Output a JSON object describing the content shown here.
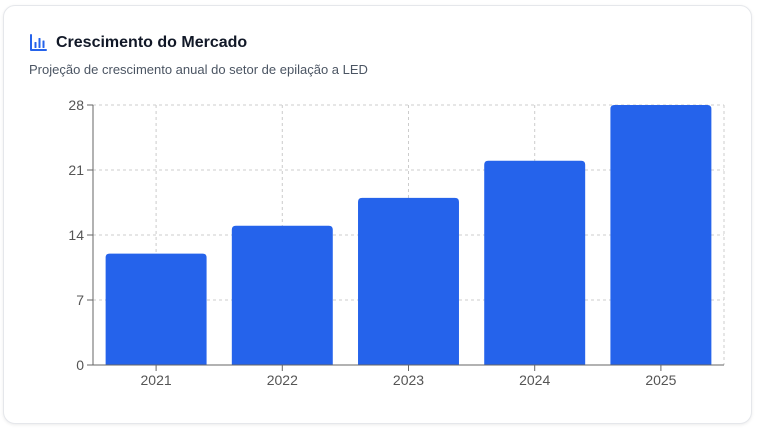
{
  "header": {
    "title": "Crescimento do Mercado",
    "subtitle": "Projeção de crescimento anual do setor de epilação a LED",
    "icon": "bar-chart-icon",
    "accent_color": "#2563eb"
  },
  "chart_data": {
    "type": "bar",
    "categories": [
      "2021",
      "2022",
      "2023",
      "2024",
      "2025"
    ],
    "values": [
      12,
      15,
      18,
      22,
      28
    ],
    "title": "",
    "xlabel": "",
    "ylabel": "",
    "ylim": [
      0,
      28
    ],
    "yticks": [
      0,
      7,
      14,
      21,
      28
    ],
    "grid": true,
    "bar_color": "#2563eb"
  }
}
